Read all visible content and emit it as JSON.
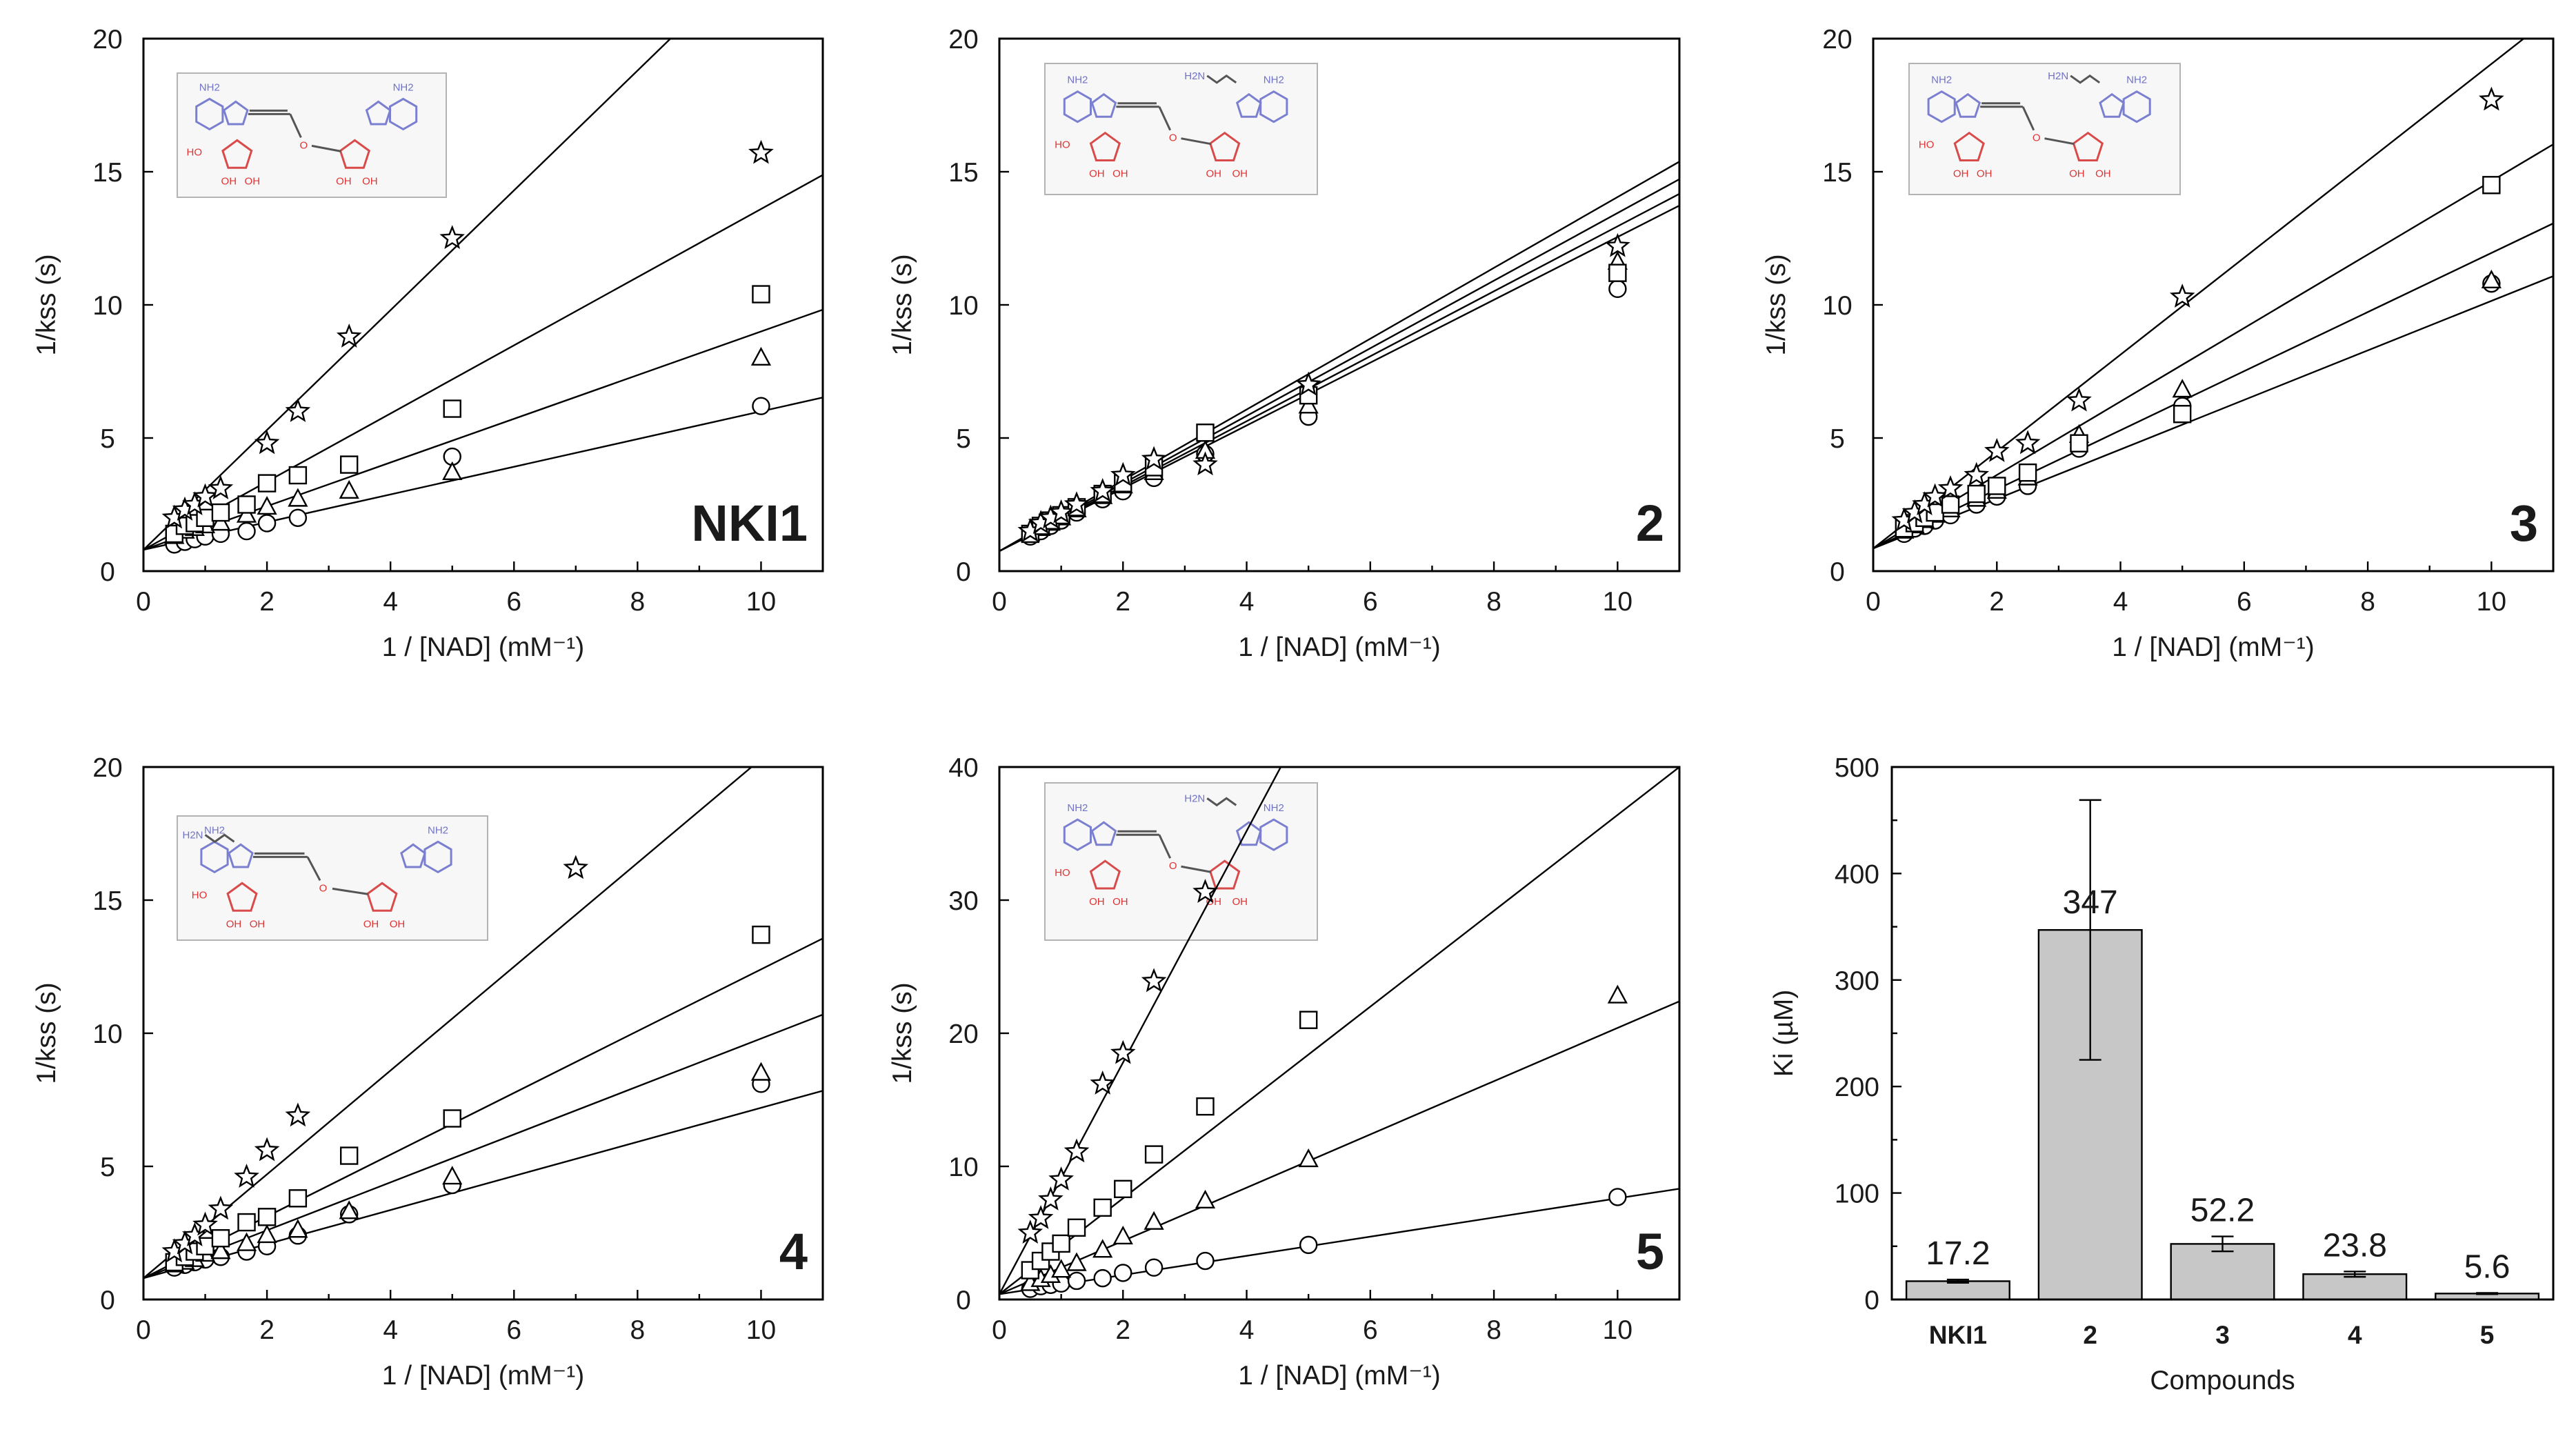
{
  "panels": [
    {
      "id": "NKI1",
      "label": "NKI1",
      "xlabel": "1 / [NAD] (mM⁻¹)",
      "ylabel": "1/kss (s)",
      "xlim": [
        0,
        11
      ],
      "ylim": [
        0,
        20
      ],
      "xticks": [
        0,
        2,
        4,
        6,
        8,
        10
      ],
      "yticks": [
        0,
        5,
        10,
        15,
        20
      ],
      "structure": "NKI1",
      "lines": [
        {
          "marker": "circle",
          "intercept": 0.8,
          "slope": 0.52
        },
        {
          "marker": "triangle",
          "intercept": 0.8,
          "slope": 0.82
        },
        {
          "marker": "square",
          "intercept": 0.8,
          "slope": 1.28
        },
        {
          "marker": "star",
          "intercept": 0.8,
          "slope": 2.25
        }
      ],
      "series": [
        {
          "marker": "circle",
          "x": [
            0.5,
            0.67,
            0.83,
            1.0,
            1.25,
            1.67,
            2.0,
            2.5,
            5.0,
            10.0
          ],
          "y": [
            1.0,
            1.1,
            1.2,
            1.3,
            1.4,
            1.5,
            1.8,
            2.0,
            4.3,
            6.2
          ]
        },
        {
          "marker": "triangle",
          "x": [
            0.5,
            0.67,
            0.83,
            1.0,
            1.25,
            1.67,
            2.0,
            2.5,
            3.33,
            5.0,
            10.0
          ],
          "y": [
            1.3,
            1.5,
            1.6,
            1.7,
            1.8,
            2.1,
            2.4,
            2.7,
            3.0,
            3.7,
            8.0
          ]
        },
        {
          "marker": "square",
          "x": [
            0.5,
            0.67,
            0.83,
            1.0,
            1.25,
            1.67,
            2.0,
            2.5,
            3.33,
            5.0,
            10.0
          ],
          "y": [
            1.4,
            1.7,
            1.8,
            2.0,
            2.2,
            2.5,
            3.3,
            3.6,
            4.0,
            6.1,
            10.4
          ]
        },
        {
          "marker": "star",
          "x": [
            0.5,
            0.67,
            0.83,
            1.0,
            1.25,
            2.0,
            2.5,
            3.33,
            5.0,
            10.0
          ],
          "y": [
            2.0,
            2.3,
            2.5,
            2.8,
            3.1,
            4.8,
            6.0,
            8.8,
            12.5,
            15.7
          ]
        }
      ]
    },
    {
      "id": "2",
      "label": "2",
      "xlabel": "1 / [NAD] (mM⁻¹)",
      "ylabel": "1/kss (s)",
      "xlim": [
        0,
        11
      ],
      "ylim": [
        0,
        20
      ],
      "xticks": [
        0,
        2,
        4,
        6,
        8,
        10
      ],
      "yticks": [
        0,
        5,
        10,
        15,
        20
      ],
      "structure": "2",
      "lines": [
        {
          "marker": "circle",
          "intercept": 0.75,
          "slope": 1.18
        },
        {
          "marker": "triangle",
          "intercept": 0.75,
          "slope": 1.22
        },
        {
          "marker": "square",
          "intercept": 0.75,
          "slope": 1.27
        },
        {
          "marker": "star",
          "intercept": 0.75,
          "slope": 1.33
        }
      ],
      "series": [
        {
          "marker": "circle",
          "x": [
            0.5,
            0.67,
            0.83,
            1.0,
            1.25,
            1.67,
            2.0,
            2.5,
            3.33,
            5.0,
            10.0
          ],
          "y": [
            1.3,
            1.5,
            1.7,
            1.9,
            2.2,
            2.7,
            3.0,
            3.5,
            4.4,
            5.8,
            10.6
          ]
        },
        {
          "marker": "triangle",
          "x": [
            0.5,
            0.67,
            0.83,
            1.0,
            1.25,
            1.67,
            2.0,
            2.5,
            3.33,
            5.0,
            10.0
          ],
          "y": [
            1.4,
            1.6,
            1.8,
            2.0,
            2.3,
            2.8,
            3.2,
            3.7,
            4.5,
            6.2,
            11.6
          ]
        },
        {
          "marker": "square",
          "x": [
            0.5,
            0.67,
            0.83,
            1.0,
            1.25,
            1.67,
            2.0,
            2.5,
            3.33,
            5.0,
            10.0
          ],
          "y": [
            1.4,
            1.7,
            1.9,
            2.1,
            2.4,
            2.9,
            3.3,
            3.9,
            5.2,
            6.6,
            11.2
          ]
        },
        {
          "marker": "star",
          "x": [
            0.5,
            0.67,
            0.83,
            1.0,
            1.25,
            1.67,
            2.0,
            2.5,
            3.33,
            5.0,
            10.0
          ],
          "y": [
            1.5,
            1.8,
            2.0,
            2.2,
            2.5,
            3.0,
            3.6,
            4.2,
            4.0,
            7.0,
            12.2
          ]
        }
      ]
    },
    {
      "id": "3",
      "label": "3",
      "xlabel": "1 / [NAD] (mM⁻¹)",
      "ylabel": "1/kss (s)",
      "xlim": [
        0,
        11
      ],
      "ylim": [
        0,
        20
      ],
      "xticks": [
        0,
        2,
        4,
        6,
        8,
        10
      ],
      "yticks": [
        0,
        5,
        10,
        15,
        20
      ],
      "structure": "3",
      "lines": [
        {
          "marker": "circle",
          "intercept": 0.85,
          "slope": 0.93
        },
        {
          "marker": "triangle",
          "intercept": 0.85,
          "slope": 1.11
        },
        {
          "marker": "square",
          "intercept": 0.85,
          "slope": 1.38
        },
        {
          "marker": "star",
          "intercept": 0.85,
          "slope": 1.82
        }
      ],
      "series": [
        {
          "marker": "circle",
          "x": [
            0.5,
            0.67,
            0.83,
            1.0,
            1.25,
            1.67,
            2.0,
            2.5,
            3.33,
            5.0,
            10.0
          ],
          "y": [
            1.4,
            1.6,
            1.7,
            1.9,
            2.1,
            2.5,
            2.8,
            3.2,
            4.6,
            6.2,
            10.8
          ]
        },
        {
          "marker": "triangle",
          "x": [
            0.5,
            0.67,
            0.83,
            1.0,
            1.25,
            1.67,
            2.0,
            2.5,
            3.33,
            5.0,
            10.0
          ],
          "y": [
            1.5,
            1.7,
            1.9,
            2.1,
            2.3,
            2.7,
            3.0,
            3.5,
            5.1,
            6.8,
            10.9
          ]
        },
        {
          "marker": "square",
          "x": [
            0.5,
            0.67,
            0.83,
            1.0,
            1.25,
            1.67,
            2.0,
            2.5,
            3.33,
            5.0,
            10.0
          ],
          "y": [
            1.6,
            1.8,
            2.0,
            2.2,
            2.5,
            2.9,
            3.2,
            3.7,
            4.8,
            5.9,
            14.5
          ]
        },
        {
          "marker": "star",
          "x": [
            0.5,
            0.67,
            0.83,
            1.0,
            1.25,
            1.67,
            2.0,
            2.5,
            3.33,
            5.0,
            10.0
          ],
          "y": [
            1.9,
            2.2,
            2.5,
            2.8,
            3.1,
            3.6,
            4.5,
            4.8,
            6.4,
            10.3,
            17.7
          ]
        }
      ]
    },
    {
      "id": "4",
      "label": "4",
      "xlabel": "1 / [NAD] (mM⁻¹)",
      "ylabel": "1/kss (s)",
      "xlim": [
        0,
        11
      ],
      "ylim": [
        0,
        20
      ],
      "xticks": [
        0,
        2,
        4,
        6,
        8,
        10
      ],
      "yticks": [
        0,
        5,
        10,
        15,
        20
      ],
      "structure": "4",
      "lines": [
        {
          "marker": "circle",
          "intercept": 0.8,
          "slope": 0.64
        },
        {
          "marker": "triangle",
          "intercept": 0.8,
          "slope": 0.9
        },
        {
          "marker": "square",
          "intercept": 0.8,
          "slope": 1.16
        },
        {
          "marker": "star",
          "intercept": 0.8,
          "slope": 1.95
        }
      ],
      "series": [
        {
          "marker": "circle",
          "x": [
            0.5,
            0.67,
            0.83,
            1.0,
            1.25,
            1.67,
            2.0,
            2.5,
            3.33,
            5.0,
            10.0
          ],
          "y": [
            1.2,
            1.3,
            1.4,
            1.5,
            1.6,
            1.8,
            2.0,
            2.4,
            3.2,
            4.3,
            8.1
          ]
        },
        {
          "marker": "triangle",
          "x": [
            0.5,
            0.67,
            0.83,
            1.0,
            1.25,
            1.67,
            2.0,
            2.5,
            3.33,
            5.0,
            10.0
          ],
          "y": [
            1.3,
            1.4,
            1.5,
            1.7,
            1.8,
            2.1,
            2.4,
            2.6,
            3.3,
            4.6,
            8.5
          ]
        },
        {
          "marker": "square",
          "x": [
            0.5,
            0.67,
            0.83,
            1.0,
            1.25,
            1.67,
            2.0,
            2.5,
            3.33,
            5.0,
            10.0
          ],
          "y": [
            1.4,
            1.6,
            1.8,
            2.0,
            2.3,
            2.9,
            3.1,
            3.8,
            5.4,
            6.8,
            13.7
          ]
        },
        {
          "marker": "star",
          "x": [
            0.5,
            0.67,
            0.83,
            1.0,
            1.25,
            1.67,
            2.0,
            2.5,
            7.0
          ],
          "y": [
            1.8,
            2.1,
            2.4,
            2.8,
            3.4,
            4.6,
            5.6,
            6.9,
            16.2
          ]
        }
      ]
    },
    {
      "id": "5",
      "label": "5",
      "xlabel": "1 / [NAD] (mM⁻¹)",
      "ylabel": "1/kss (s)",
      "xlim": [
        0,
        11
      ],
      "ylim": [
        0,
        40
      ],
      "xticks": [
        0,
        2,
        4,
        6,
        8,
        10
      ],
      "yticks": [
        0,
        10,
        20,
        30,
        40
      ],
      "structure": "5",
      "lines": [
        {
          "marker": "circle",
          "intercept": 0.4,
          "slope": 0.72
        },
        {
          "marker": "triangle",
          "intercept": 0.4,
          "slope": 2.0
        },
        {
          "marker": "square",
          "intercept": 0.4,
          "slope": 3.6
        },
        {
          "marker": "star",
          "intercept": 0.4,
          "slope": 8.7
        }
      ],
      "series": [
        {
          "marker": "circle",
          "x": [
            0.5,
            0.67,
            0.83,
            1.0,
            1.25,
            1.67,
            2.0,
            2.5,
            3.33,
            5.0,
            10.0
          ],
          "y": [
            0.8,
            1.0,
            1.1,
            1.2,
            1.4,
            1.6,
            2.0,
            2.4,
            2.9,
            4.1,
            7.7
          ]
        },
        {
          "marker": "triangle",
          "x": [
            0.5,
            0.67,
            0.83,
            1.0,
            1.25,
            1.67,
            2.0,
            2.5,
            3.33,
            5.0,
            10.0
          ],
          "y": [
            1.2,
            1.5,
            1.8,
            2.2,
            2.7,
            3.7,
            4.7,
            5.8,
            7.4,
            10.5,
            22.8
          ]
        },
        {
          "marker": "square",
          "x": [
            0.5,
            0.67,
            0.83,
            1.0,
            1.25,
            1.67,
            2.0,
            2.5,
            3.33,
            5.0
          ],
          "y": [
            2.2,
            2.9,
            3.6,
            4.2,
            5.4,
            6.9,
            8.3,
            10.9,
            14.5,
            21.0
          ]
        },
        {
          "marker": "star",
          "x": [
            0.5,
            0.67,
            0.83,
            1.0,
            1.25,
            1.67,
            2.0,
            2.5,
            3.33
          ],
          "y": [
            5.0,
            6.1,
            7.5,
            9.0,
            11.1,
            16.2,
            18.5,
            23.9,
            30.6
          ]
        }
      ]
    }
  ],
  "bar_panel": {
    "type": "bar",
    "ylabel": "Ki (µM)",
    "xlabel": "Compounds",
    "ylim": [
      0,
      500
    ],
    "yticks": [
      0,
      100,
      200,
      300,
      400,
      500
    ],
    "categories": [
      "NKI1",
      "2",
      "3",
      "4",
      "5"
    ],
    "values": [
      17.2,
      347,
      52.2,
      23.8,
      5.6
    ],
    "errors": [
      1.5,
      122,
      7,
      2.5,
      0.6
    ],
    "value_labels": [
      "17.2",
      "347",
      "52.2",
      "23.8",
      "5.6"
    ]
  },
  "structures": {
    "NKI1": {
      "amine": null
    },
    "2": {
      "amine": "H2N"
    },
    "3": {
      "amine": "H2N"
    },
    "4": {
      "amine": "H2N"
    },
    "5": {
      "amine": "H2N"
    }
  },
  "structure_text": {
    "nh2": "NH2",
    "oh": "OH",
    "ho": "HO",
    "o": "O",
    "n": "N"
  },
  "colors": {
    "bar_fill": "#c7c7c7",
    "purine": "#7b7fd0",
    "sugar": "#d94b4b"
  }
}
